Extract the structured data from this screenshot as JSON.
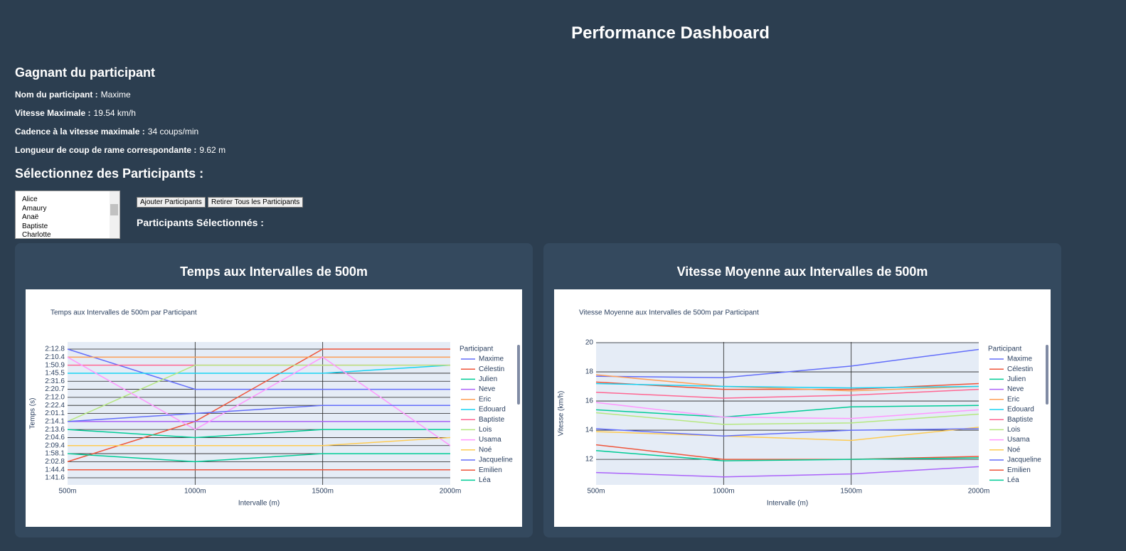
{
  "header": {
    "title": "Performance Dashboard"
  },
  "winner": {
    "heading": "Gagnant du participant",
    "fields": [
      {
        "label": "Nom du participant :",
        "value": "Maxime"
      },
      {
        "label": "Vitesse Maximale :",
        "value": "19.54 km/h"
      },
      {
        "label": "Cadence à la vitesse maximale :",
        "value": "34 coups/min"
      },
      {
        "label": "Longueur de coup de rame correspondante :",
        "value": "9.62 m"
      }
    ]
  },
  "selector": {
    "heading": "Sélectionnez des Participants :",
    "options": [
      "Alice",
      "Amaury",
      "Anaë",
      "Baptiste",
      "Charlotte"
    ],
    "buttons": [
      "Ajouter Participants",
      "Retirer Tous les Participants"
    ],
    "selected_label": "Participants Sélectionnés :"
  },
  "chart_data": [
    {
      "type": "line",
      "card_title": "Temps aux Intervalles de 500m",
      "title": "Temps aux Intervalles de 500m par Participant",
      "x_label": "Intervalle (m)",
      "y_label": "Temps (s)",
      "legend_title": "Participant",
      "categories": [
        "500m",
        "1000m",
        "1500m",
        "2000m"
      ],
      "yticks": [
        "1:41.6",
        "1:44.4",
        "2:02.8",
        "1:58.1",
        "2:09.4",
        "2:04.6",
        "2:13.6",
        "2:14.1",
        "2:01.1",
        "2:22.4",
        "2:12.0",
        "2:20.7",
        "2:31.6",
        "1:45.5",
        "1:50.9",
        "2:10.4",
        "2:12.8"
      ],
      "grid": true,
      "series": [
        {
          "name": "Maxime",
          "color": "#636efa",
          "values": [
            "2:12.8",
            "2:20.7",
            "2:20.7",
            "2:20.7"
          ]
        },
        {
          "name": "Célestin",
          "color": "#EF553B",
          "values": [
            "2:02.8",
            "2:14.1",
            "2:12.8",
            "2:12.8"
          ]
        },
        {
          "name": "Julien",
          "color": "#00cc96",
          "values": [
            "2:13.6",
            "2:04.6",
            "2:13.6",
            "2:13.6"
          ]
        },
        {
          "name": "Neve",
          "color": "#ab63fa",
          "values": [
            "2:14.1",
            "2:14.1",
            "2:14.1",
            "2:14.1"
          ]
        },
        {
          "name": "Eric",
          "color": "#FFA15A",
          "values": [
            "2:10.4",
            "2:10.4",
            "2:10.4",
            "2:10.4"
          ]
        },
        {
          "name": "Edouard",
          "color": "#19d3f3",
          "values": [
            "1:45.5",
            "1:45.5",
            "1:45.5",
            "1:50.9"
          ]
        },
        {
          "name": "Baptiste",
          "color": "#FF6692",
          "values": [
            "1:50.9",
            "1:50.9",
            "1:50.9",
            "1:50.9"
          ]
        },
        {
          "name": "Lois",
          "color": "#B6E880",
          "values": [
            "2:14.1",
            "1:50.9",
            "1:50.9",
            "1:50.9"
          ]
        },
        {
          "name": "Usama",
          "color": "#FF97FF",
          "values": [
            "2:10.4",
            "2:13.6",
            "2:10.4",
            "2:09.4"
          ]
        },
        {
          "name": "Noé",
          "color": "#FECB52",
          "values": [
            "2:09.4",
            "2:09.4",
            "2:09.4",
            "2:04.6"
          ]
        },
        {
          "name": "Jacqueline",
          "color": "#636efa",
          "values": [
            "2:14.1",
            "2:01.1",
            "2:22.4",
            "2:22.4"
          ]
        },
        {
          "name": "Emilien",
          "color": "#EF553B",
          "values": [
            "1:44.4",
            "1:44.4",
            "1:44.4",
            "1:44.4"
          ]
        },
        {
          "name": "Léa",
          "color": "#00cc96",
          "values": [
            "1:58.1",
            "2:02.8",
            "1:58.1",
            "1:58.1"
          ]
        }
      ]
    },
    {
      "type": "line",
      "card_title": "Vitesse Moyenne aux Intervalles de 500m",
      "title": "Vitesse Moyenne aux Intervalles de 500m par Participant",
      "x_label": "Intervalle (m)",
      "y_label": "Vitesse (km/h)",
      "legend_title": "Participant",
      "categories": [
        "500m",
        "1000m",
        "1500m",
        "2000m"
      ],
      "ylim": [
        10.25,
        20.05
      ],
      "yticks": [
        12,
        14,
        16,
        18,
        20
      ],
      "grid": true,
      "series": [
        {
          "name": "Maxime",
          "color": "#636efa",
          "values": [
            17.7,
            17.6,
            18.4,
            19.54
          ]
        },
        {
          "name": "Célestin",
          "color": "#EF553B",
          "values": [
            17.3,
            16.8,
            16.8,
            17.2
          ]
        },
        {
          "name": "Julien",
          "color": "#00cc96",
          "values": [
            15.4,
            14.9,
            15.6,
            15.7
          ]
        },
        {
          "name": "Neve",
          "color": "#ab63fa",
          "values": [
            11.1,
            10.8,
            11.0,
            11.5
          ]
        },
        {
          "name": "Eric",
          "color": "#FFA15A",
          "values": [
            17.8,
            17.0,
            16.7,
            17.0
          ]
        },
        {
          "name": "Edouard",
          "color": "#19d3f3",
          "values": [
            17.2,
            17.0,
            16.9,
            17.0
          ]
        },
        {
          "name": "Baptiste",
          "color": "#FF6692",
          "values": [
            16.6,
            16.2,
            16.4,
            16.8
          ]
        },
        {
          "name": "Lois",
          "color": "#B6E880",
          "values": [
            15.2,
            14.4,
            14.5,
            15.1
          ]
        },
        {
          "name": "Usama",
          "color": "#FF97FF",
          "values": [
            15.9,
            14.9,
            14.8,
            15.4
          ]
        },
        {
          "name": "Noé",
          "color": "#FECB52",
          "values": [
            13.9,
            13.6,
            13.3,
            14.2
          ]
        },
        {
          "name": "Jacqueline",
          "color": "#636efa",
          "values": [
            14.1,
            13.6,
            14.0,
            14.1
          ]
        },
        {
          "name": "Emilien",
          "color": "#EF553B",
          "values": [
            13.0,
            12.0,
            12.0,
            12.2
          ]
        },
        {
          "name": "Léa",
          "color": "#00cc96",
          "values": [
            12.6,
            11.9,
            12.0,
            12.1
          ]
        }
      ]
    }
  ]
}
